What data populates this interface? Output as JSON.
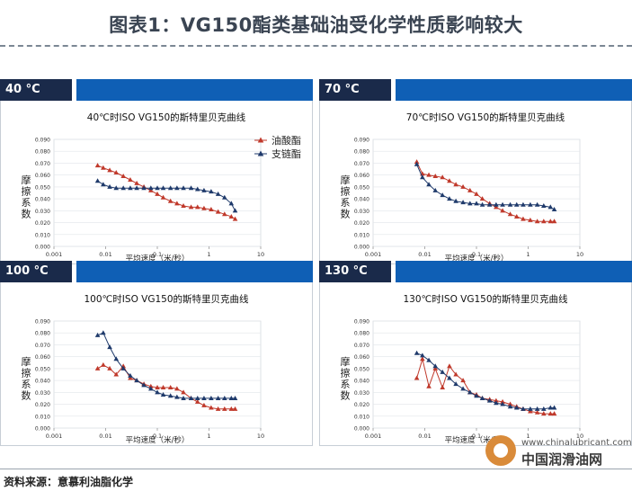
{
  "title": "图表1：VG150酯类基础油受化学性质影响较大",
  "source": "资料来源：意慕利油脂化学",
  "watermark": {
    "url": "www.chinalubricant.com",
    "name": "中国润滑油网"
  },
  "colors": {
    "series_1": "#c0392b",
    "series_2": "#1f3a6b",
    "header_dark": "#1a2a4a",
    "header_blue": "#0f5fb5"
  },
  "chart_data": [
    {
      "type": "line",
      "temp": "40 °C",
      "title": "40℃时ISO VG150的斯特里贝克曲线",
      "xlabel": "平均速度（米/秒）",
      "ylabel": "摩擦系数",
      "xscale": "log",
      "xlim": [
        0.001,
        10
      ],
      "ylim": [
        0,
        0.09
      ],
      "xticks": [
        "0.001",
        "0.01",
        "0.1",
        "1",
        "10"
      ],
      "yticks": [
        "0.000",
        "0.010",
        "0.020",
        "0.030",
        "0.040",
        "0.050",
        "0.060",
        "0.070",
        "0.080",
        "0.090"
      ],
      "legend": [
        "油酸酯",
        "支链酯"
      ],
      "legend_position": "top-right",
      "series": [
        {
          "name": "油酸酯",
          "marker": "triangle",
          "x": [
            0.007,
            0.009,
            0.012,
            0.016,
            0.022,
            0.03,
            0.04,
            0.055,
            0.075,
            0.1,
            0.13,
            0.18,
            0.24,
            0.32,
            0.45,
            0.6,
            0.8,
            1.1,
            1.5,
            2,
            2.7,
            3.2
          ],
          "y": [
            0.068,
            0.066,
            0.064,
            0.062,
            0.059,
            0.056,
            0.053,
            0.05,
            0.047,
            0.044,
            0.041,
            0.038,
            0.036,
            0.034,
            0.033,
            0.033,
            0.032,
            0.031,
            0.029,
            0.027,
            0.025,
            0.023
          ]
        },
        {
          "name": "支链酯",
          "marker": "triangle",
          "x": [
            0.007,
            0.009,
            0.012,
            0.016,
            0.022,
            0.03,
            0.04,
            0.055,
            0.075,
            0.1,
            0.13,
            0.18,
            0.24,
            0.32,
            0.45,
            0.6,
            0.8,
            1.1,
            1.5,
            2,
            2.7,
            3.2
          ],
          "y": [
            0.055,
            0.052,
            0.05,
            0.049,
            0.049,
            0.049,
            0.049,
            0.049,
            0.049,
            0.049,
            0.049,
            0.049,
            0.049,
            0.049,
            0.049,
            0.048,
            0.047,
            0.046,
            0.044,
            0.041,
            0.036,
            0.03
          ]
        }
      ]
    },
    {
      "type": "line",
      "temp": "70 °C",
      "title": "70℃时ISO VG150的斯特里贝克曲线",
      "xlabel": "平均速度（米/秒）",
      "ylabel": "摩擦系数",
      "xscale": "log",
      "xlim": [
        0.001,
        10
      ],
      "ylim": [
        0,
        0.09
      ],
      "xticks": [
        "0.001",
        "0.01",
        "0.1",
        "1",
        "10"
      ],
      "yticks": [
        "0.000",
        "0.010",
        "0.020",
        "0.030",
        "0.040",
        "0.050",
        "0.060",
        "0.070",
        "0.080",
        "0.090"
      ],
      "series": [
        {
          "name": "油酸酯",
          "marker": "triangle",
          "x": [
            0.007,
            0.009,
            0.012,
            0.016,
            0.022,
            0.03,
            0.04,
            0.055,
            0.075,
            0.1,
            0.13,
            0.18,
            0.24,
            0.32,
            0.45,
            0.6,
            0.8,
            1.1,
            1.5,
            2,
            2.7,
            3.2
          ],
          "y": [
            0.071,
            0.061,
            0.06,
            0.059,
            0.058,
            0.055,
            0.052,
            0.05,
            0.047,
            0.044,
            0.04,
            0.036,
            0.033,
            0.03,
            0.027,
            0.025,
            0.023,
            0.022,
            0.021,
            0.021,
            0.021,
            0.021
          ]
        },
        {
          "name": "支链酯",
          "marker": "triangle",
          "x": [
            0.007,
            0.009,
            0.012,
            0.016,
            0.022,
            0.03,
            0.04,
            0.055,
            0.075,
            0.1,
            0.13,
            0.18,
            0.24,
            0.32,
            0.45,
            0.6,
            0.8,
            1.1,
            1.5,
            2,
            2.7,
            3.2
          ],
          "y": [
            0.069,
            0.058,
            0.052,
            0.047,
            0.043,
            0.04,
            0.038,
            0.037,
            0.036,
            0.036,
            0.035,
            0.035,
            0.035,
            0.035,
            0.035,
            0.035,
            0.035,
            0.035,
            0.035,
            0.034,
            0.033,
            0.031
          ]
        }
      ]
    },
    {
      "type": "line",
      "temp": "100 °C",
      "title": "100℃时ISO VG150的斯特里贝克曲线",
      "xlabel": "平均速度（米/秒）",
      "ylabel": "摩擦系数",
      "xscale": "log",
      "xlim": [
        0.001,
        10
      ],
      "ylim": [
        0,
        0.09
      ],
      "xticks": [
        "0.001",
        "0.01",
        "0.1",
        "1",
        "10"
      ],
      "yticks": [
        "0.000",
        "0.010",
        "0.020",
        "0.030",
        "0.040",
        "0.050",
        "0.060",
        "0.070",
        "0.080",
        "0.090"
      ],
      "series": [
        {
          "name": "油酸酯",
          "marker": "triangle",
          "x": [
            0.007,
            0.009,
            0.012,
            0.016,
            0.022,
            0.03,
            0.04,
            0.055,
            0.075,
            0.1,
            0.13,
            0.18,
            0.24,
            0.32,
            0.45,
            0.6,
            0.8,
            1.1,
            1.5,
            2,
            2.7,
            3.2
          ],
          "y": [
            0.05,
            0.053,
            0.05,
            0.045,
            0.052,
            0.042,
            0.04,
            0.037,
            0.035,
            0.034,
            0.034,
            0.034,
            0.033,
            0.03,
            0.025,
            0.022,
            0.019,
            0.017,
            0.016,
            0.016,
            0.016,
            0.016
          ]
        },
        {
          "name": "支链酯",
          "marker": "triangle",
          "x": [
            0.007,
            0.009,
            0.012,
            0.016,
            0.022,
            0.03,
            0.04,
            0.055,
            0.075,
            0.1,
            0.13,
            0.18,
            0.24,
            0.32,
            0.45,
            0.6,
            0.8,
            1.1,
            1.5,
            2,
            2.7,
            3.2
          ],
          "y": [
            0.078,
            0.08,
            0.068,
            0.058,
            0.05,
            0.044,
            0.04,
            0.036,
            0.033,
            0.03,
            0.028,
            0.027,
            0.026,
            0.025,
            0.025,
            0.025,
            0.025,
            0.025,
            0.025,
            0.025,
            0.025,
            0.025
          ]
        }
      ]
    },
    {
      "type": "line",
      "temp": "130 °C",
      "title": "130℃时ISO VG150的斯特里贝克曲线",
      "xlabel": "平均速度（米/秒）",
      "ylabel": "摩擦系数",
      "xscale": "log",
      "xlim": [
        0.001,
        10
      ],
      "ylim": [
        0,
        0.09
      ],
      "xticks": [
        "0.001",
        "0.01",
        "0.1",
        "1",
        "10"
      ],
      "yticks": [
        "0.000",
        "0.010",
        "0.020",
        "0.030",
        "0.040",
        "0.050",
        "0.060",
        "0.070",
        "0.080",
        "0.090"
      ],
      "series": [
        {
          "name": "油酸酯",
          "marker": "triangle",
          "x": [
            0.007,
            0.009,
            0.012,
            0.016,
            0.022,
            0.03,
            0.04,
            0.055,
            0.075,
            0.1,
            0.13,
            0.18,
            0.24,
            0.32,
            0.45,
            0.6,
            0.8,
            1.1,
            1.5,
            2,
            2.7,
            3.2
          ],
          "y": [
            0.042,
            0.058,
            0.035,
            0.05,
            0.034,
            0.052,
            0.045,
            0.04,
            0.03,
            0.028,
            0.025,
            0.024,
            0.023,
            0.022,
            0.02,
            0.018,
            0.016,
            0.014,
            0.013,
            0.012,
            0.012,
            0.012
          ]
        },
        {
          "name": "支链酯",
          "marker": "triangle",
          "x": [
            0.007,
            0.009,
            0.012,
            0.016,
            0.022,
            0.03,
            0.04,
            0.055,
            0.075,
            0.1,
            0.13,
            0.18,
            0.24,
            0.32,
            0.45,
            0.6,
            0.8,
            1.1,
            1.5,
            2,
            2.7,
            3.2
          ],
          "y": [
            0.063,
            0.061,
            0.057,
            0.052,
            0.047,
            0.042,
            0.037,
            0.033,
            0.03,
            0.027,
            0.025,
            0.023,
            0.021,
            0.02,
            0.018,
            0.017,
            0.016,
            0.016,
            0.016,
            0.016,
            0.017,
            0.017
          ]
        }
      ]
    }
  ]
}
